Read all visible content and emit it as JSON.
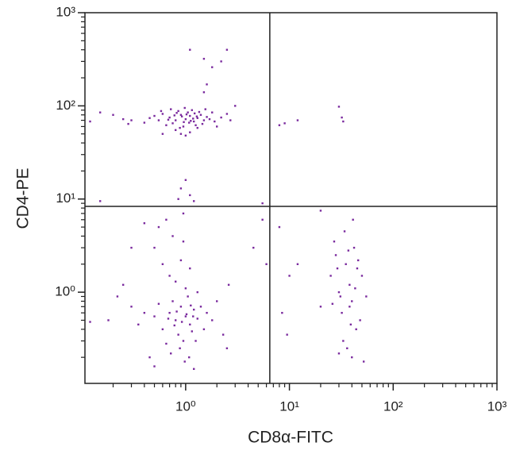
{
  "chart_data": {
    "type": "scatter",
    "x_label": "CD8α-FITC",
    "y_label": "CD4-PE",
    "xscale": "log",
    "yscale": "log",
    "xlim": [
      0.107,
      1000
    ],
    "ylim": [
      0.105,
      1000
    ],
    "xticks": [
      {
        "value": 1,
        "label": "10⁰"
      },
      {
        "value": 10,
        "label": "10¹"
      },
      {
        "value": 100,
        "label": "10²"
      },
      {
        "value": 1000,
        "label": "10³"
      }
    ],
    "yticks": [
      {
        "value": 1,
        "label": "10⁰"
      },
      {
        "value": 10,
        "label": "10¹"
      },
      {
        "value": 100,
        "label": "10²"
      },
      {
        "value": 1000,
        "label": "10³"
      }
    ],
    "quadrant_gate": {
      "x": 6.47,
      "y": 8.33
    },
    "series": [
      {
        "color": "#7a2a9e",
        "x": [
          0.7,
          0.8,
          0.9,
          1.0,
          1.1,
          1.2,
          1.3,
          0.6,
          0.75,
          0.85,
          0.95,
          1.05,
          1.15,
          1.25,
          1.4,
          1.5,
          1.6,
          0.55,
          0.65,
          0.72,
          0.88,
          0.98,
          1.08,
          1.18,
          1.35,
          1.7,
          1.9,
          2.2,
          0.5,
          0.45,
          0.3,
          0.2,
          0.15,
          0.12,
          0.25,
          0.28,
          0.8,
          0.9,
          1.0,
          1.1,
          0.6,
          1.3,
          2.5,
          3.0,
          2.7,
          0.78,
          0.92,
          1.02,
          1.12,
          1.22,
          0.68,
          0.82,
          0.96,
          1.28,
          1.45,
          0.58,
          1.55,
          1.8,
          2.0,
          0.4,
          1.1,
          1.5,
          2.5,
          2.2,
          1.8,
          1.6,
          1.5,
          1.0,
          0.9,
          1.1,
          0.85,
          1.2,
          0.95,
          0.15,
          8,
          9,
          12,
          30,
          32,
          33,
          5.5,
          20,
          0.7,
          0.8,
          0.9,
          1.0,
          1.1,
          1.2,
          0.6,
          0.75,
          0.85,
          0.95,
          1.05,
          1.15,
          1.3,
          1.4,
          1.6,
          0.5,
          0.55,
          0.65,
          0.72,
          0.88,
          0.98,
          1.08,
          1.25,
          1.5,
          1.8,
          2.0,
          2.3,
          0.4,
          0.35,
          0.3,
          0.22,
          0.18,
          0.12,
          0.25,
          0.45,
          0.5,
          1.2,
          2.5,
          2.6,
          1.0,
          0.8,
          1.3,
          0.7,
          0.6,
          0.9,
          1.1,
          0.5,
          0.75,
          0.95,
          0.55,
          0.65,
          0.4,
          0.3,
          0.82,
          0.92,
          1.02,
          1.12,
          0.68,
          0.78,
          1.18,
          4.5,
          6.0,
          5.5,
          25,
          28,
          30,
          32,
          35,
          38,
          40,
          42,
          45,
          48,
          50,
          33,
          36,
          30,
          40,
          44,
          27,
          34,
          41,
          46,
          38,
          29,
          31,
          43,
          37,
          26,
          55,
          20,
          52,
          8,
          8.5,
          9.5,
          12,
          10,
          39
        ],
        "values": [
          75,
          70,
          80,
          72,
          78,
          68,
          74,
          82,
          65,
          88,
          60,
          85,
          90,
          62,
          80,
          70,
          76,
          70,
          62,
          92,
          58,
          95,
          66,
          73,
          86,
          72,
          68,
          75,
          78,
          74,
          70,
          80,
          85,
          68,
          72,
          64,
          55,
          50,
          48,
          52,
          50,
          58,
          82,
          100,
          70,
          79,
          77,
          81,
          69,
          83,
          71,
          84,
          67,
          77,
          64,
          88,
          92,
          85,
          60,
          66,
          400,
          320,
          400,
          300,
          260,
          170,
          140,
          16,
          13,
          11,
          10,
          9.5,
          7,
          9.5,
          62,
          65,
          70,
          98,
          75,
          68,
          9,
          7.5,
          0.6,
          0.5,
          0.7,
          0.55,
          0.45,
          0.65,
          0.4,
          0.8,
          0.35,
          0.3,
          0.9,
          0.38,
          0.52,
          0.7,
          0.6,
          0.55,
          0.75,
          0.28,
          0.22,
          0.25,
          0.18,
          0.2,
          0.3,
          0.4,
          0.5,
          0.8,
          0.35,
          0.6,
          0.45,
          0.7,
          0.9,
          0.5,
          0.48,
          1.2,
          0.2,
          0.16,
          0.15,
          0.25,
          1.2,
          1.1,
          1.3,
          1.0,
          1.5,
          2.0,
          2.2,
          1.8,
          3.0,
          4.0,
          3.5,
          5.0,
          6.0,
          5.5,
          3.0,
          0.62,
          0.48,
          0.58,
          0.72,
          0.52,
          0.44,
          0.55,
          3.0,
          2.0,
          6.0,
          1.5,
          2.5,
          1.0,
          0.6,
          2.0,
          1.2,
          0.8,
          3.0,
          1.8,
          0.5,
          1.5,
          0.3,
          0.25,
          0.22,
          0.2,
          0.4,
          3.5,
          4.5,
          6.0,
          2.2,
          0.7,
          1.8,
          0.9,
          1.1,
          2.8,
          0.75,
          0.9,
          0.7,
          0.18,
          5.0,
          0.6,
          0.35,
          2.0,
          1.5,
          0.45
        ]
      }
    ]
  }
}
